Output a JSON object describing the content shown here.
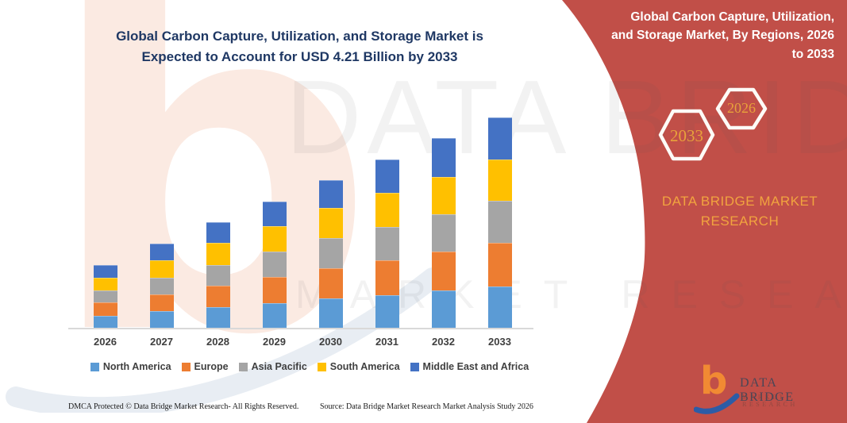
{
  "main_title": {
    "text": "Global Carbon Capture, Utilization, and Storage Market is\nExpected to Account for USD 4.21 Billion by 2033"
  },
  "chart_data": {
    "type": "bar",
    "stacked": true,
    "title": "Global Carbon Capture, Utilization, and Storage Market is Expected to Account for USD 4.21 Billion by 2033",
    "unit": "USD Billion",
    "categories": [
      "2026",
      "2027",
      "2028",
      "2029",
      "2030",
      "2031",
      "2032",
      "2033"
    ],
    "series": [
      {
        "name": "North America",
        "color": "#5B9BD5",
        "values": [
          0.24,
          0.33,
          0.41,
          0.5,
          0.59,
          0.66,
          0.75,
          0.83
        ]
      },
      {
        "name": "Europe",
        "color": "#ED7D31",
        "values": [
          0.27,
          0.34,
          0.44,
          0.52,
          0.61,
          0.69,
          0.77,
          0.87
        ]
      },
      {
        "name": "Asia Pacific",
        "color": "#A5A5A5",
        "values": [
          0.24,
          0.33,
          0.41,
          0.5,
          0.6,
          0.67,
          0.76,
          0.84
        ]
      },
      {
        "name": "South America",
        "color": "#FFC000",
        "values": [
          0.25,
          0.35,
          0.44,
          0.51,
          0.6,
          0.68,
          0.74,
          0.83
        ]
      },
      {
        "name": "Middle East and Africa",
        "color": "#4472C4",
        "values": [
          0.26,
          0.33,
          0.41,
          0.5,
          0.55,
          0.67,
          0.77,
          0.84
        ]
      }
    ],
    "totals": [
      1.26,
      1.68,
      2.11,
      2.53,
      2.95,
      3.37,
      3.79,
      4.21
    ],
    "ylim": [
      0,
      4.21
    ],
    "grid": false,
    "legend_position": "bottom",
    "xlabel": "",
    "ylabel": ""
  },
  "side_panel": {
    "title": "Global Carbon Capture, Utilization,\nand Storage Market, By Regions, 2026\nto 2033",
    "hexagon_back_label": "2033",
    "hexagon_front_label": "2026",
    "brand_text": "DATA BRIDGE MARKET\nRESEARCH",
    "bg_color": "#C14F48"
  },
  "watermark": {
    "big_letter": "b",
    "line1": "DATA BRIDGE",
    "line2": "MARKET RESEARCH"
  },
  "logo": {
    "letter": "b",
    "name": "DATA BRIDGE",
    "subtitle": "MARKET RESEARCH"
  },
  "footer": {
    "left": "DMCA Protected © Data Bridge Market Research-  All Rights Reserved.",
    "right": "Source: Data Bridge Market Research  Market Analysis Study 2026"
  },
  "colors": {
    "panel_red": "#C14F48",
    "title_navy": "#1F3864",
    "accent_orange": "#EFA23C",
    "hexagon_stroke": "#FDFBF7",
    "axis_gray": "#D9D9D9",
    "label_gray": "#3F3F3F"
  }
}
